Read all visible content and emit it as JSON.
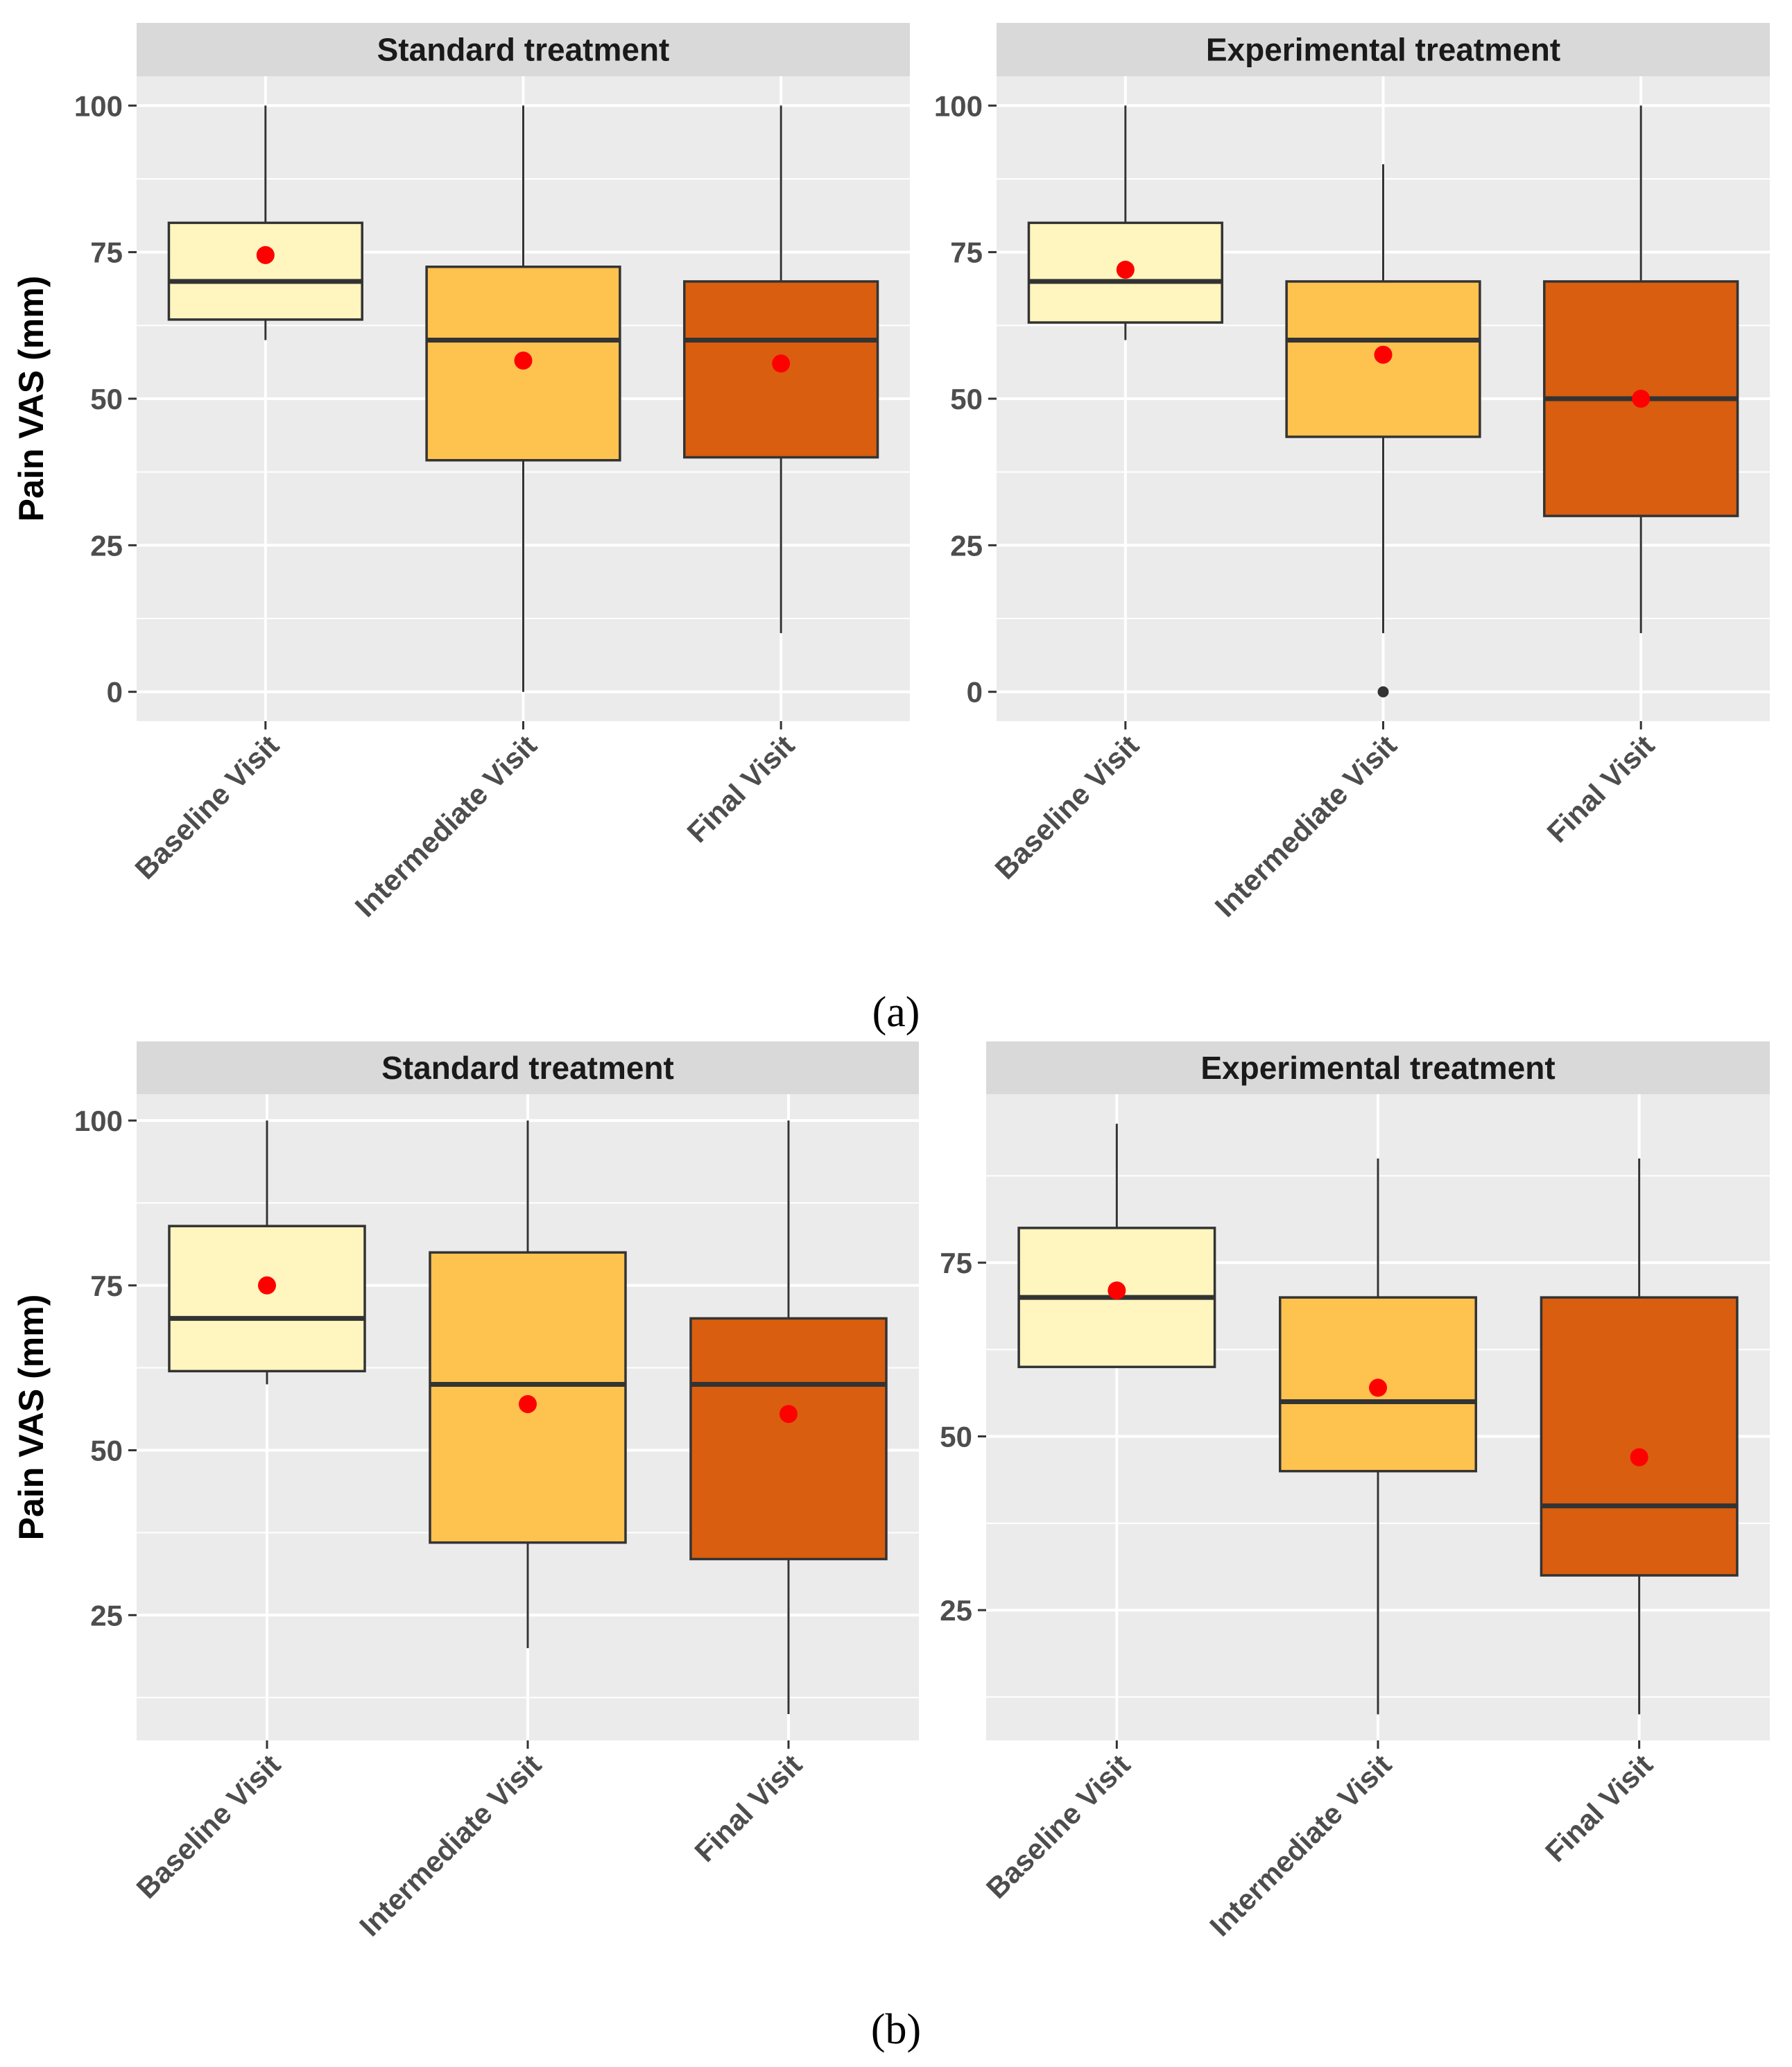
{
  "colors": {
    "baseline_fill": "#fff5bf",
    "intermediate_fill": "#fec24f",
    "final_fill": "#d95e0f",
    "mean_point": "#ff0000",
    "panel_bg": "#ebebeb",
    "strip_bg": "#d9d9d9",
    "box_line": "#333333"
  },
  "figure": {
    "caption_a": "(a)",
    "caption_b": "(b)"
  },
  "chart_data": [
    {
      "type": "boxplot",
      "title": "Standard treatment",
      "caption": "(a)",
      "ylabel": "Pain VAS (mm)",
      "xlabel": "",
      "ylim": [
        -5,
        105
      ],
      "yticks": [
        0,
        25,
        50,
        75,
        100
      ],
      "categories": [
        "Baseline Visit",
        "Intermediate Visit",
        "Final Visit"
      ],
      "boxes": [
        {
          "whisker_low": 60,
          "q1": 63.5,
          "median": 70,
          "q3": 80,
          "whisker_high": 100,
          "mean": 74.5,
          "outliers": []
        },
        {
          "whisker_low": 0,
          "q1": 39.5,
          "median": 60,
          "q3": 72.5,
          "whisker_high": 100,
          "mean": 56.5,
          "outliers": []
        },
        {
          "whisker_low": 10,
          "q1": 40,
          "median": 60,
          "q3": 70,
          "whisker_high": 100,
          "mean": 56,
          "outliers": []
        }
      ]
    },
    {
      "type": "boxplot",
      "title": "Experimental treatment",
      "caption": "(a)",
      "ylabel": "",
      "xlabel": "",
      "ylim": [
        -5,
        105
      ],
      "yticks": [
        0,
        25,
        50,
        75,
        100
      ],
      "categories": [
        "Baseline Visit",
        "Intermediate Visit",
        "Final Visit"
      ],
      "boxes": [
        {
          "whisker_low": 60,
          "q1": 63,
          "median": 70,
          "q3": 80,
          "whisker_high": 100,
          "mean": 72,
          "outliers": []
        },
        {
          "whisker_low": 10,
          "q1": 43.5,
          "median": 60,
          "q3": 70,
          "whisker_high": 90,
          "mean": 57.5,
          "outliers": [
            0
          ]
        },
        {
          "whisker_low": 10,
          "q1": 30,
          "median": 50,
          "q3": 70,
          "whisker_high": 100,
          "mean": 50,
          "outliers": []
        }
      ]
    },
    {
      "type": "boxplot",
      "title": "Standard treatment",
      "caption": "(b)",
      "ylabel": "Pain VAS (mm)",
      "xlabel": "",
      "ylim": [
        6,
        104
      ],
      "yticks": [
        25,
        50,
        75,
        100
      ],
      "categories": [
        "Baseline Visit",
        "Intermediate Visit",
        "Final Visit"
      ],
      "boxes": [
        {
          "whisker_low": 60,
          "q1": 62,
          "median": 70,
          "q3": 84,
          "whisker_high": 100,
          "mean": 75,
          "outliers": []
        },
        {
          "whisker_low": 20,
          "q1": 36,
          "median": 60,
          "q3": 80,
          "whisker_high": 100,
          "mean": 57,
          "outliers": []
        },
        {
          "whisker_low": 10,
          "q1": 33.5,
          "median": 60,
          "q3": 70,
          "whisker_high": 100,
          "mean": 55.5,
          "outliers": []
        }
      ]
    },
    {
      "type": "boxplot",
      "title": "Experimental treatment",
      "caption": "(b)",
      "ylabel": "",
      "xlabel": "",
      "ylim": [
        6.25,
        99.25
      ],
      "yticks": [
        25,
        50,
        75
      ],
      "categories": [
        "Baseline Visit",
        "Intermediate Visit",
        "Final Visit"
      ],
      "boxes": [
        {
          "whisker_low": 60,
          "q1": 60,
          "median": 70,
          "q3": 80,
          "whisker_high": 95,
          "mean": 71,
          "outliers": []
        },
        {
          "whisker_low": 10,
          "q1": 45,
          "median": 55,
          "q3": 70,
          "whisker_high": 90,
          "mean": 57,
          "outliers": []
        },
        {
          "whisker_low": 10,
          "q1": 30,
          "median": 40,
          "q3": 70,
          "whisker_high": 90,
          "mean": 47,
          "outliers": []
        }
      ]
    }
  ]
}
